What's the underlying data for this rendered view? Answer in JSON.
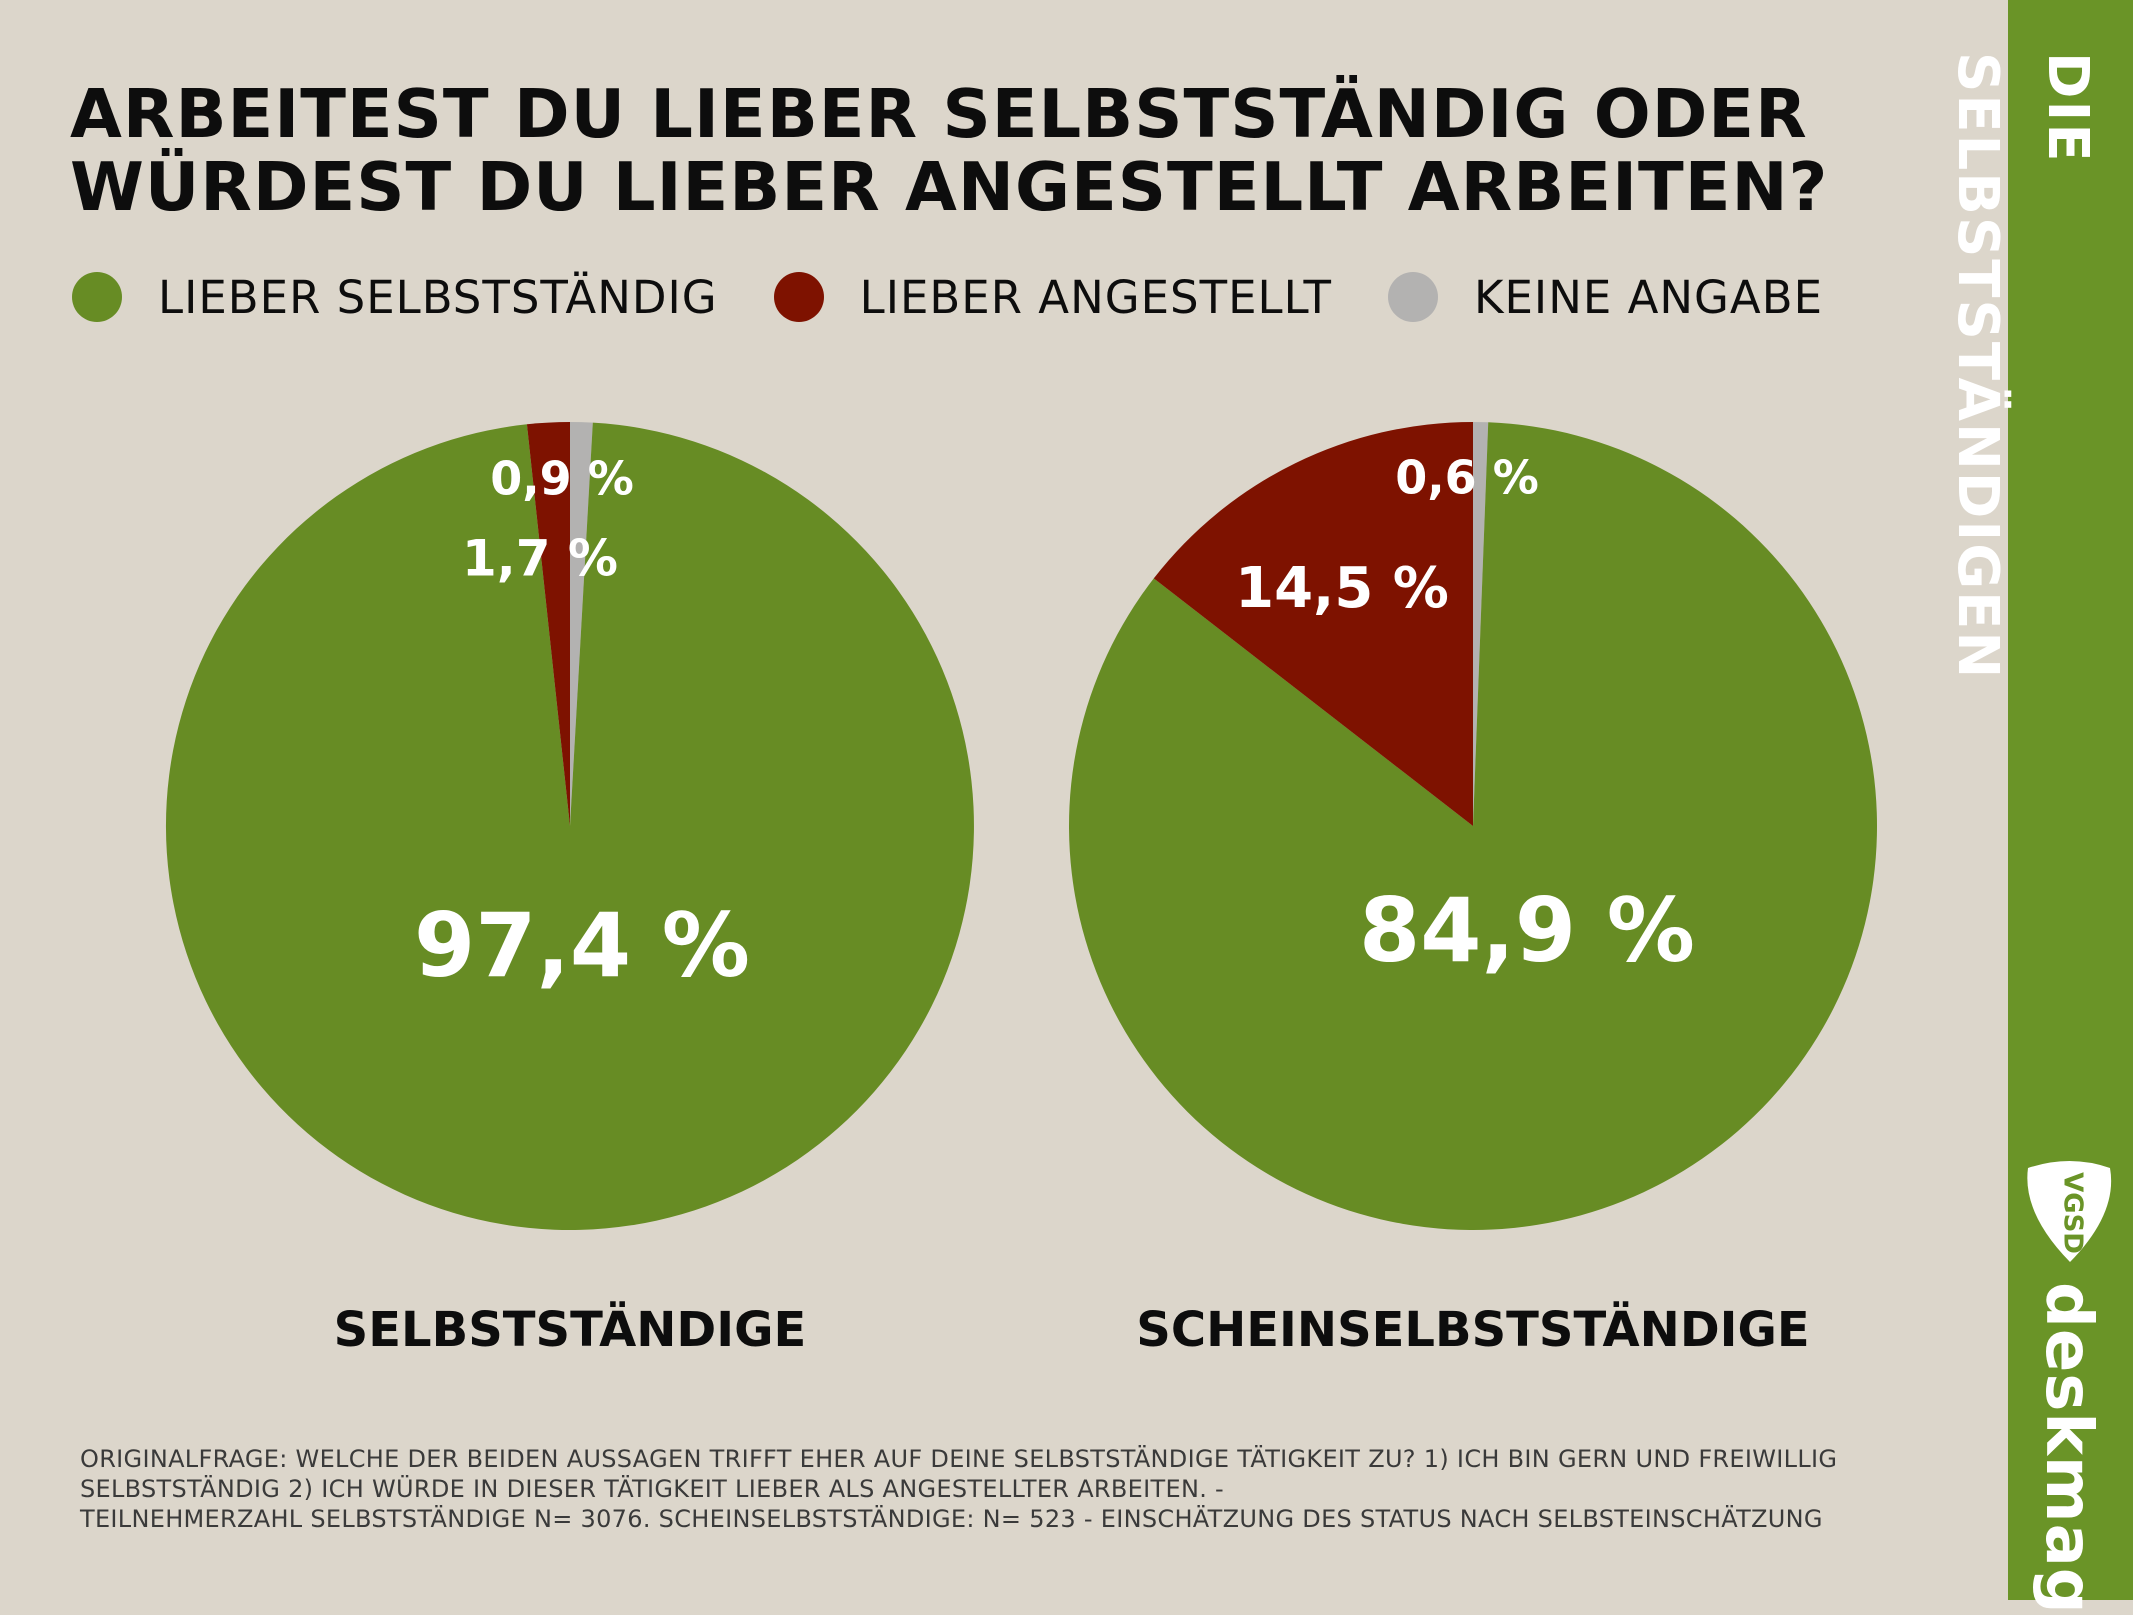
{
  "title": {
    "line1": "ARBEITEST DU LIEBER SELBSTSTÄNDIG ODER",
    "line2": "WÜRDEST DU LIEBER ANGESTELLT ARBEITEN?"
  },
  "colors": {
    "background": "#dcd6cb",
    "green": "#678c24",
    "red": "#7e1200",
    "grey": "#b3b2b1",
    "sidebar": "#6a9427"
  },
  "legend": [
    {
      "label": "LIEBER SELBSTSTÄNDIG",
      "color": "#678c24"
    },
    {
      "label": "LIEBER ANGESTELLT",
      "color": "#7e1200"
    },
    {
      "label": "KEINE ANGABE",
      "color": "#b3b2b1"
    }
  ],
  "chart_data": [
    {
      "type": "pie",
      "title": "SELBSTSTÄNDIGE",
      "slices": [
        {
          "label": "LIEBER SELBSTSTÄNDIG",
          "value": 97.4,
          "text": "97,4 %"
        },
        {
          "label": "LIEBER ANGESTELLT",
          "value": 1.7,
          "text": "1,7 %"
        },
        {
          "label": "KEINE ANGABE",
          "value": 0.9,
          "text": "0,9 %"
        }
      ]
    },
    {
      "type": "pie",
      "title": "SCHEINSELBSTSTÄNDIGE",
      "slices": [
        {
          "label": "LIEBER SELBSTSTÄNDIG",
          "value": 84.9,
          "text": "84,9 %"
        },
        {
          "label": "LIEBER ANGESTELLT",
          "value": 14.5,
          "text": "14,5 %"
        },
        {
          "label": "KEINE ANGABE",
          "value": 0.6,
          "text": "0,6 %"
        }
      ]
    }
  ],
  "footnote": {
    "line1": "ORIGINALFRAGE: WELCHE DER BEIDEN AUSSAGEN TRIFFT EHER AUF DEINE SELBSTSTÄNDIGE TÄTIGKEIT ZU? 1) ICH BIN GERN UND FREIWILLIG",
    "line2": "SELBSTSTÄNDIG 2) ICH WÜRDE IN DIESER TÄTIGKEIT LIEBER ALS ANGESTELLTER ARBEITEN. -",
    "line3": "TEILNEHMERZAHL SELBSTSTÄNDIGE N= 3076. SCHEINSELBSTSTÄNDIGE: N= 523 - EINSCHÄTZUNG DES STATUS NACH SELBSTEINSCHÄTZUNG"
  },
  "sidebar": {
    "title": "DIE SELBSTSTÄNDIGEN",
    "badge": "VGSD",
    "brand": "deskmag",
    "badge_icon": "vgsd-badge-icon"
  }
}
